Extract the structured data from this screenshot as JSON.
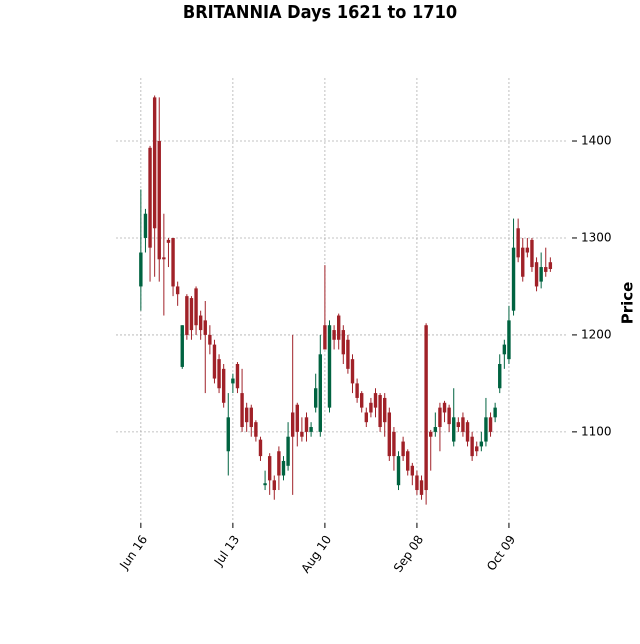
{
  "chart_data": {
    "type": "candlestick",
    "title": "BRITANNIA Days 1621 to 1710",
    "y_label": "Price",
    "categories": [
      "Jun 16",
      null,
      null,
      null,
      null,
      null,
      null,
      null,
      null,
      null,
      null,
      null,
      null,
      null,
      null,
      null,
      null,
      null,
      null,
      null,
      "Jul 13",
      null,
      null,
      null,
      null,
      null,
      null,
      null,
      null,
      null,
      null,
      null,
      null,
      null,
      null,
      null,
      null,
      null,
      null,
      null,
      "Aug 10",
      null,
      null,
      null,
      null,
      null,
      null,
      null,
      null,
      null,
      null,
      null,
      null,
      null,
      null,
      null,
      null,
      null,
      null,
      null,
      "Sep 08",
      null,
      null,
      null,
      null,
      null,
      null,
      null,
      null,
      null,
      null,
      null,
      null,
      null,
      null,
      null,
      null,
      null,
      null,
      null,
      "Oct 09",
      null,
      null,
      null,
      null,
      null,
      null,
      null,
      null,
      null
    ],
    "open": [
      1250,
      1300,
      1393,
      1445,
      1400,
      1280,
      1298,
      1300,
      1250,
      1167,
      1240,
      1238,
      1248,
      1220,
      1215,
      1200,
      1190,
      1175,
      1165,
      1080,
      1150,
      1170,
      1140,
      1125,
      1125,
      1110,
      1092,
      1045,
      1075,
      1050,
      1080,
      1055,
      1065,
      1120,
      1128,
      1100,
      1115,
      1100,
      1125,
      1100,
      1210,
      1125,
      1205,
      1220,
      1205,
      1195,
      1175,
      1150,
      1140,
      1120,
      1130,
      1140,
      1138,
      1135,
      1120,
      1100,
      1045,
      1090,
      1080,
      1065,
      1055,
      1050,
      1210,
      1100,
      1100,
      1125,
      1130,
      1125,
      1090,
      1110,
      1115,
      1110,
      1095,
      1085,
      1085,
      1090,
      1115,
      1115,
      1145,
      1180,
      1175,
      1225,
      1310,
      1290,
      1290,
      1298,
      1275,
      1255,
      1270,
      1275
    ],
    "high": [
      1350,
      1330,
      1395,
      1447,
      1445,
      1325,
      1300,
      1300,
      1255,
      1210,
      1242,
      1240,
      1250,
      1225,
      1235,
      1210,
      1195,
      1180,
      1170,
      1140,
      1160,
      1172,
      1165,
      1130,
      1128,
      1112,
      1095,
      1060,
      1078,
      1055,
      1085,
      1075,
      1110,
      1200,
      1130,
      1115,
      1120,
      1110,
      1160,
      1200,
      1272,
      1215,
      1210,
      1222,
      1210,
      1200,
      1180,
      1155,
      1142,
      1125,
      1135,
      1145,
      1140,
      1140,
      1125,
      1105,
      1080,
      1095,
      1082,
      1068,
      1060,
      1055,
      1212,
      1102,
      1120,
      1130,
      1132,
      1128,
      1145,
      1115,
      1120,
      1112,
      1100,
      1090,
      1100,
      1135,
      1120,
      1130,
      1180,
      1195,
      1230,
      1320,
      1320,
      1300,
      1300,
      1300,
      1280,
      1285,
      1290,
      1280
    ],
    "low": [
      1225,
      1285,
      1255,
      1260,
      1255,
      1220,
      1270,
      1240,
      1230,
      1165,
      1195,
      1195,
      1200,
      1195,
      1140,
      1180,
      1150,
      1140,
      1125,
      1055,
      1140,
      1140,
      1100,
      1100,
      1095,
      1090,
      1070,
      1040,
      1035,
      1030,
      1040,
      1050,
      1060,
      1035,
      1085,
      1090,
      1090,
      1095,
      1120,
      1095,
      1185,
      1120,
      1185,
      1185,
      1170,
      1160,
      1140,
      1130,
      1120,
      1105,
      1115,
      1115,
      1100,
      1095,
      1070,
      1060,
      1040,
      1070,
      1055,
      1045,
      1035,
      1030,
      1025,
      1060,
      1095,
      1080,
      1110,
      1100,
      1085,
      1100,
      1095,
      1085,
      1070,
      1075,
      1080,
      1085,
      1095,
      1110,
      1140,
      1165,
      1170,
      1220,
      1275,
      1255,
      1280,
      1265,
      1245,
      1248,
      1260,
      1265
    ],
    "close": [
      1285,
      1325,
      1290,
      1310,
      1278,
      1278,
      1295,
      1250,
      1242,
      1210,
      1200,
      1205,
      1210,
      1205,
      1200,
      1190,
      1155,
      1145,
      1130,
      1115,
      1155,
      1145,
      1105,
      1110,
      1105,
      1095,
      1075,
      1047,
      1050,
      1040,
      1055,
      1070,
      1095,
      1095,
      1100,
      1095,
      1100,
      1105,
      1145,
      1180,
      1185,
      1210,
      1195,
      1195,
      1180,
      1165,
      1150,
      1135,
      1125,
      1110,
      1120,
      1125,
      1105,
      1110,
      1075,
      1075,
      1075,
      1075,
      1060,
      1055,
      1040,
      1035,
      1040,
      1095,
      1105,
      1105,
      1120,
      1108,
      1115,
      1105,
      1100,
      1090,
      1075,
      1080,
      1090,
      1115,
      1100,
      1125,
      1170,
      1190,
      1215,
      1290,
      1280,
      1260,
      1285,
      1270,
      1250,
      1270,
      1265,
      1268
    ],
    "up_color": "#006340",
    "down_color": "#a02128",
    "xlim": [
      -5.4,
      92.4
    ],
    "ylim": [
      1006,
      1465
    ],
    "yticks": [
      1100,
      1200,
      1300,
      1400
    ],
    "grid": true
  }
}
